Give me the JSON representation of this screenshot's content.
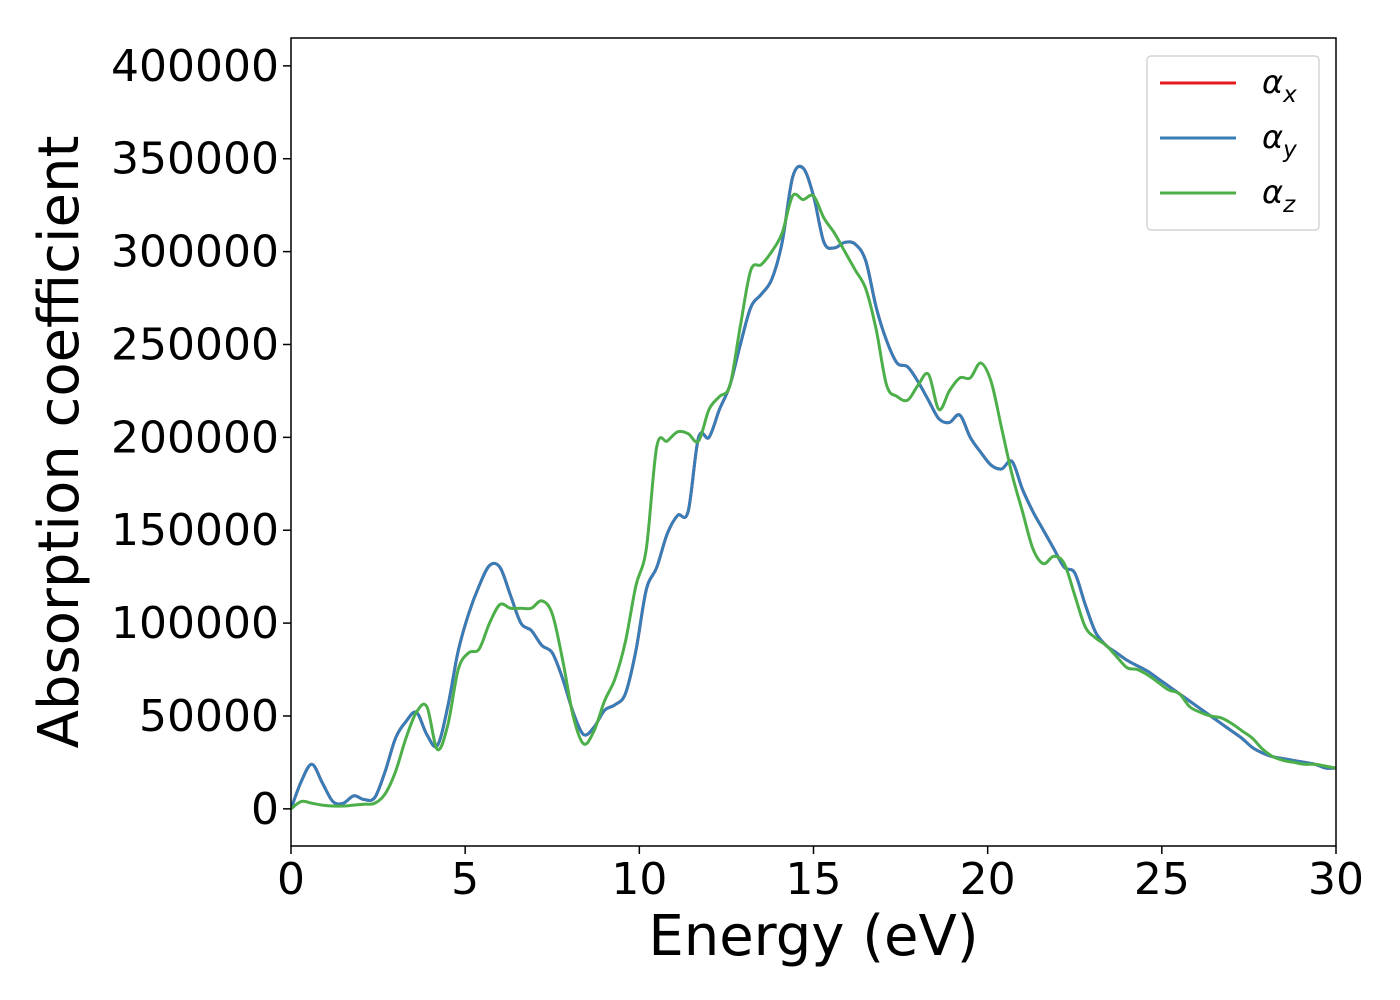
{
  "chart_data": {
    "type": "line",
    "xlabel": "Energy (eV)",
    "ylabel": "Absorption coefficient",
    "xlim": [
      0,
      30
    ],
    "ylim": [
      -20000,
      415000
    ],
    "xticks": [
      0,
      5,
      10,
      15,
      20,
      25,
      30
    ],
    "yticks": [
      0,
      50000,
      100000,
      150000,
      200000,
      250000,
      300000,
      350000,
      400000
    ],
    "grid": false,
    "legend_position": "top-right",
    "series": [
      {
        "name": "α",
        "subscript": "x",
        "color": "#e41a1c",
        "x": [
          0,
          0.3,
          0.6,
          0.9,
          1.2,
          1.5,
          1.8,
          2.1,
          2.4,
          2.7,
          3.0,
          3.3,
          3.6,
          3.9,
          4.2,
          4.5,
          4.8,
          5.1,
          5.4,
          5.7,
          6.0,
          6.3,
          6.6,
          6.9,
          7.2,
          7.5,
          7.8,
          8.1,
          8.4,
          8.7,
          9.0,
          9.3,
          9.6,
          9.9,
          10.2,
          10.5,
          10.8,
          11.1,
          11.4,
          11.7,
          12.0,
          12.3,
          12.6,
          12.9,
          13.2,
          13.5,
          13.8,
          14.1,
          14.4,
          14.7,
          15.0,
          15.3,
          15.6,
          15.9,
          16.2,
          16.5,
          16.8,
          17.1,
          17.4,
          17.7,
          18.0,
          18.3,
          18.6,
          18.9,
          19.2,
          19.5,
          19.8,
          20.1,
          20.4,
          20.7,
          21.0,
          21.3,
          21.6,
          21.9,
          22.2,
          22.5,
          22.8,
          23.1,
          23.4,
          23.7,
          24.0,
          24.3,
          24.6,
          24.9,
          25.2,
          25.5,
          25.8,
          26.1,
          26.4,
          26.7,
          27.0,
          27.3,
          27.6,
          27.9,
          28.2,
          28.5,
          28.8,
          29.1,
          29.4,
          29.7,
          30.0
        ],
        "y": [
          0,
          15000,
          24000,
          14000,
          4000,
          3000,
          7000,
          5000,
          6000,
          20000,
          38000,
          47000,
          52000,
          40000,
          34000,
          55000,
          85000,
          105000,
          120000,
          131000,
          130000,
          115000,
          100000,
          96000,
          88000,
          84000,
          70000,
          52000,
          40000,
          44000,
          53000,
          56000,
          62000,
          85000,
          118000,
          130000,
          148000,
          158000,
          160000,
          200000,
          200000,
          215000,
          228000,
          250000,
          270000,
          277000,
          285000,
          305000,
          340000,
          345000,
          330000,
          305000,
          302000,
          305000,
          304000,
          295000,
          270000,
          252000,
          240000,
          238000,
          230000,
          220000,
          210000,
          208000,
          212000,
          200000,
          192000,
          185000,
          183000,
          187000,
          172000,
          160000,
          150000,
          140000,
          130000,
          127000,
          110000,
          95000,
          88000,
          84000,
          80000,
          77000,
          74000,
          70000,
          66000,
          62000,
          58000,
          54000,
          50000,
          46000,
          42000,
          38000,
          33000,
          30000,
          28000,
          27000,
          26000,
          25000,
          24000,
          22000,
          22000
        ]
      },
      {
        "name": "α",
        "subscript": "y",
        "color": "#377eb8",
        "x": [
          0,
          0.3,
          0.6,
          0.9,
          1.2,
          1.5,
          1.8,
          2.1,
          2.4,
          2.7,
          3.0,
          3.3,
          3.6,
          3.9,
          4.2,
          4.5,
          4.8,
          5.1,
          5.4,
          5.7,
          6.0,
          6.3,
          6.6,
          6.9,
          7.2,
          7.5,
          7.8,
          8.1,
          8.4,
          8.7,
          9.0,
          9.3,
          9.6,
          9.9,
          10.2,
          10.5,
          10.8,
          11.1,
          11.4,
          11.7,
          12.0,
          12.3,
          12.6,
          12.9,
          13.2,
          13.5,
          13.8,
          14.1,
          14.4,
          14.7,
          15.0,
          15.3,
          15.6,
          15.9,
          16.2,
          16.5,
          16.8,
          17.1,
          17.4,
          17.7,
          18.0,
          18.3,
          18.6,
          18.9,
          19.2,
          19.5,
          19.8,
          20.1,
          20.4,
          20.7,
          21.0,
          21.3,
          21.6,
          21.9,
          22.2,
          22.5,
          22.8,
          23.1,
          23.4,
          23.7,
          24.0,
          24.3,
          24.6,
          24.9,
          25.2,
          25.5,
          25.8,
          26.1,
          26.4,
          26.7,
          27.0,
          27.3,
          27.6,
          27.9,
          28.2,
          28.5,
          28.8,
          29.1,
          29.4,
          29.7,
          30.0
        ],
        "y": [
          0,
          15000,
          24000,
          14000,
          4000,
          3000,
          7000,
          5000,
          6000,
          20000,
          38000,
          47000,
          52000,
          40000,
          34000,
          55000,
          85000,
          105000,
          120000,
          131000,
          130000,
          115000,
          100000,
          96000,
          88000,
          84000,
          70000,
          52000,
          40000,
          44000,
          53000,
          56000,
          62000,
          85000,
          118000,
          130000,
          148000,
          158000,
          160000,
          200000,
          200000,
          215000,
          228000,
          250000,
          270000,
          277000,
          285000,
          305000,
          340000,
          345000,
          330000,
          305000,
          302000,
          305000,
          304000,
          295000,
          270000,
          252000,
          240000,
          238000,
          230000,
          220000,
          210000,
          208000,
          212000,
          200000,
          192000,
          185000,
          183000,
          187000,
          172000,
          160000,
          150000,
          140000,
          130000,
          127000,
          110000,
          95000,
          88000,
          84000,
          80000,
          77000,
          74000,
          70000,
          66000,
          62000,
          58000,
          54000,
          50000,
          46000,
          42000,
          38000,
          33000,
          30000,
          28000,
          27000,
          26000,
          25000,
          24000,
          22000,
          22000
        ]
      },
      {
        "name": "α",
        "subscript": "z",
        "color": "#4daf4a",
        "x": [
          0,
          0.3,
          0.6,
          0.9,
          1.2,
          1.5,
          1.8,
          2.1,
          2.4,
          2.7,
          3.0,
          3.3,
          3.6,
          3.9,
          4.2,
          4.5,
          4.8,
          5.1,
          5.4,
          5.7,
          6.0,
          6.3,
          6.6,
          6.9,
          7.2,
          7.5,
          7.8,
          8.1,
          8.4,
          8.7,
          9.0,
          9.3,
          9.6,
          9.9,
          10.2,
          10.5,
          10.8,
          11.1,
          11.4,
          11.7,
          12.0,
          12.3,
          12.6,
          12.9,
          13.2,
          13.5,
          13.8,
          14.1,
          14.4,
          14.7,
          15.0,
          15.3,
          15.6,
          15.9,
          16.2,
          16.5,
          16.8,
          17.1,
          17.4,
          17.7,
          18.0,
          18.3,
          18.6,
          18.9,
          19.2,
          19.5,
          19.8,
          20.1,
          20.4,
          20.7,
          21.0,
          21.3,
          21.6,
          21.9,
          22.2,
          22.5,
          22.8,
          23.1,
          23.4,
          23.7,
          24.0,
          24.3,
          24.6,
          24.9,
          25.2,
          25.5,
          25.8,
          26.1,
          26.4,
          26.7,
          27.0,
          27.3,
          27.6,
          27.9,
          28.2,
          28.5,
          28.8,
          29.1,
          29.4,
          29.7,
          30.0
        ],
        "y": [
          0,
          4000,
          3000,
          2000,
          1500,
          1500,
          2000,
          2500,
          3000,
          8000,
          20000,
          38000,
          52000,
          55000,
          32000,
          45000,
          75000,
          84000,
          86000,
          100000,
          110000,
          108000,
          108000,
          108000,
          112000,
          105000,
          80000,
          50000,
          35000,
          42000,
          58000,
          70000,
          90000,
          120000,
          140000,
          195000,
          198000,
          203000,
          202000,
          198000,
          215000,
          222000,
          228000,
          260000,
          290000,
          293000,
          300000,
          310000,
          330000,
          328000,
          330000,
          318000,
          310000,
          300000,
          290000,
          280000,
          258000,
          228000,
          222000,
          220000,
          228000,
          234000,
          215000,
          225000,
          232000,
          232000,
          240000,
          230000,
          205000,
          180000,
          160000,
          140000,
          132000,
          136000,
          132000,
          115000,
          98000,
          92000,
          88000,
          82000,
          76000,
          75000,
          72000,
          68000,
          64000,
          62000,
          55000,
          52000,
          50000,
          49000,
          46000,
          42000,
          38000,
          32000,
          28000,
          26000,
          25000,
          24000,
          24000,
          23000,
          22000
        ]
      }
    ]
  }
}
